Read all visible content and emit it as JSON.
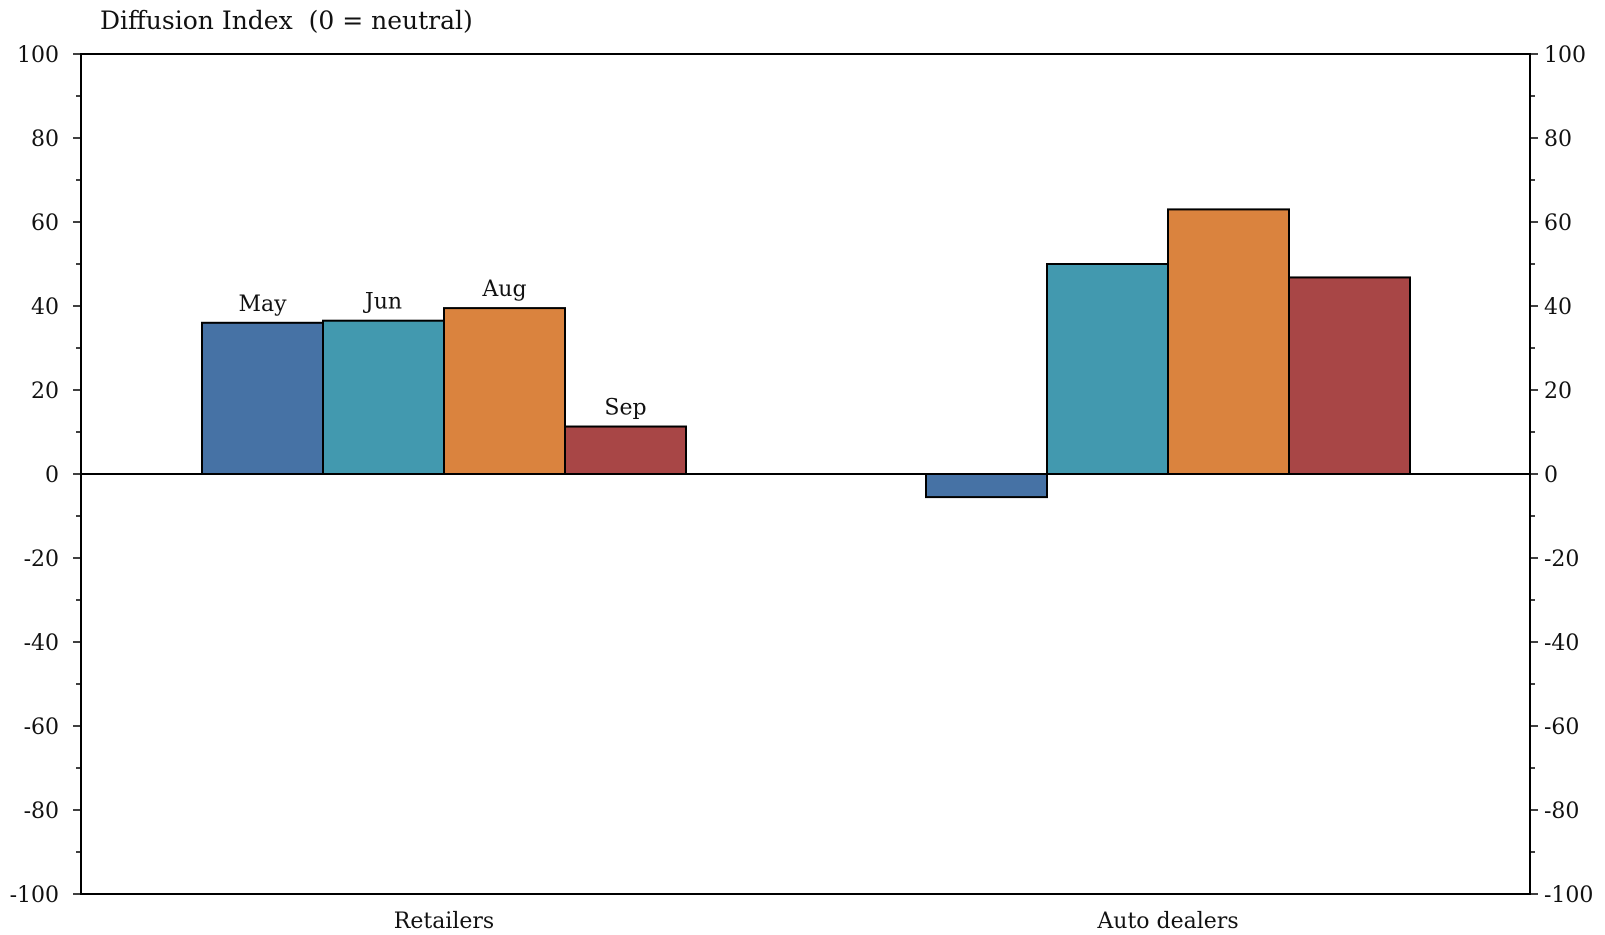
{
  "chart_data": {
    "type": "bar",
    "title": "Diffusion Index  (0 = neutral)",
    "xlabel": "",
    "ylabel": "",
    "ylim": [
      -100,
      100
    ],
    "yticks": [
      100,
      80,
      60,
      40,
      20,
      0,
      -20,
      -40,
      -60,
      -80,
      -100
    ],
    "grid": false,
    "legend": "inline labels above the Retailers bars",
    "categories": [
      "Retailers",
      "Auto dealers"
    ],
    "series": [
      {
        "name": "May",
        "color": "#4672A5",
        "values": [
          36,
          -5.5
        ]
      },
      {
        "name": "Jun",
        "color": "#4299AF",
        "values": [
          36.5,
          50
        ]
      },
      {
        "name": "Aug",
        "color": "#DA833E",
        "values": [
          39.5,
          63
        ]
      },
      {
        "name": "Sep",
        "color": "#A84646",
        "values": [
          11.3,
          46.8
        ]
      }
    ]
  }
}
